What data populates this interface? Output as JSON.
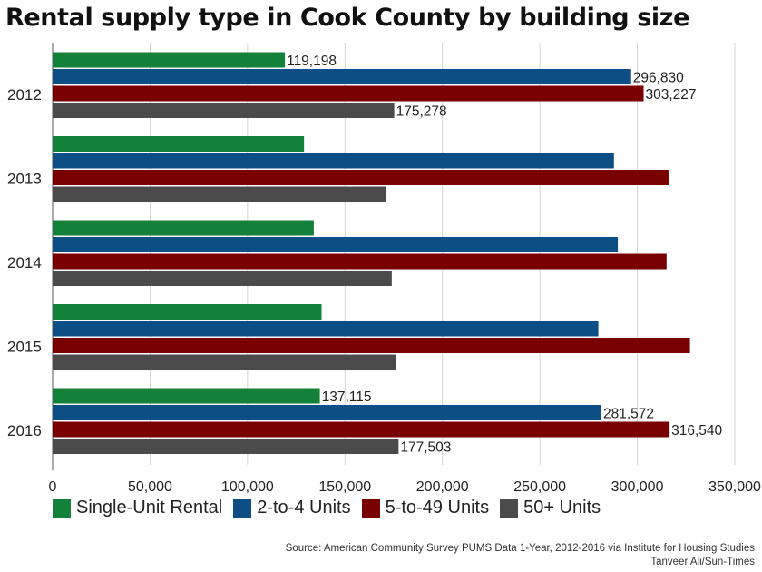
{
  "chart_data": {
    "type": "bar",
    "orientation": "horizontal",
    "title": "Rental supply type in Cook County by building size",
    "categories": [
      "2012",
      "2013",
      "2014",
      "2015",
      "2016"
    ],
    "series": [
      {
        "name": "Single-Unit Rental",
        "color": "#14813a",
        "values": [
          119198,
          129000,
          134000,
          138000,
          137115
        ]
      },
      {
        "name": "2-to-4 Units",
        "color": "#0d4f85",
        "values": [
          296830,
          288000,
          290000,
          280000,
          281572
        ]
      },
      {
        "name": "5-to-49 Units",
        "color": "#780000",
        "values": [
          303227,
          316000,
          315000,
          327000,
          316540
        ]
      },
      {
        "name": "50+ Units",
        "color": "#4b4b4b",
        "values": [
          175278,
          171000,
          174000,
          176000,
          177503
        ]
      }
    ],
    "data_labels": {
      "2012": [
        "119,198",
        "296,830",
        "303,227",
        "175,278"
      ],
      "2016": [
        "137,115",
        "281,572",
        "316,540",
        "177,503"
      ]
    },
    "x_ticks": [
      "0",
      "50,000",
      "100,000",
      "150,000",
      "200,000",
      "250,000",
      "300,000",
      "350,000"
    ],
    "xlim": [
      0,
      350000
    ],
    "grid": true,
    "legend_position": "bottom",
    "source_lines": [
      "Source: American Community Survey PUMS Data 1-Year, 2012-2016 via Institute for Housing Studies",
      "Tanveer Ali/Sun-Times"
    ]
  }
}
